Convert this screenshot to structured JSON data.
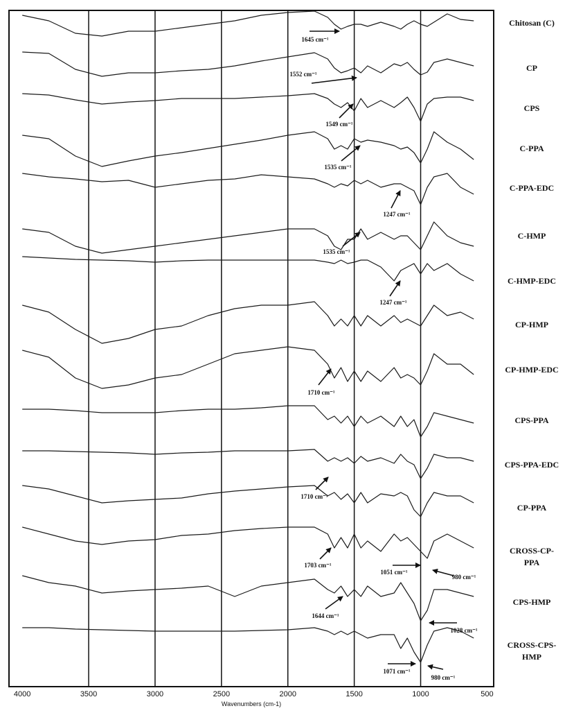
{
  "chart_data": {
    "type": "line",
    "x_label": "Wavenumbers (cm-1)",
    "x": [
      4000,
      3800,
      3600,
      3400,
      3200,
      3000,
      2800,
      2600,
      2400,
      2200,
      2000,
      1800,
      1700,
      1650,
      1600,
      1550,
      1500,
      1450,
      1400,
      1300,
      1200,
      1150,
      1100,
      1050,
      1000,
      950,
      900,
      800,
      700,
      600
    ],
    "xlim": [
      4100,
      450
    ],
    "xticks": [
      4000,
      3500,
      3000,
      2500,
      2000,
      1500,
      1000,
      500
    ],
    "ylim": [
      10,
      985
    ],
    "grid": true,
    "color": "#1a1a1a",
    "series": [
      {
        "name": "Chitosan (C)",
        "values": [
          978,
          970,
          952,
          948,
          955,
          955,
          960,
          965,
          970,
          978,
          982,
          984,
          975,
          965,
          958,
          962,
          965,
          965,
          962,
          968,
          962,
          958,
          965,
          970,
          965,
          962,
          968,
          980,
          972,
          970
        ]
      },
      {
        "name": "CP",
        "values": [
          925,
          923,
          900,
          890,
          895,
          895,
          898,
          900,
          905,
          912,
          918,
          924,
          915,
          902,
          895,
          898,
          902,
          895,
          905,
          895,
          908,
          905,
          910,
          900,
          892,
          896,
          910,
          915,
          910,
          905
        ]
      },
      {
        "name": "CPS",
        "values": [
          865,
          863,
          856,
          850,
          853,
          855,
          858,
          858,
          858,
          860,
          862,
          865,
          858,
          850,
          845,
          852,
          840,
          858,
          845,
          855,
          845,
          852,
          860,
          845,
          825,
          850,
          858,
          860,
          860,
          855
        ]
      },
      {
        "name": "C-PPA",
        "values": [
          805,
          800,
          775,
          760,
          768,
          775,
          780,
          786,
          792,
          798,
          805,
          810,
          800,
          785,
          790,
          785,
          800,
          795,
          798,
          795,
          790,
          785,
          788,
          780,
          765,
          785,
          810,
          795,
          785,
          770
        ]
      },
      {
        "name": "C-PPA-EDC",
        "values": [
          750,
          745,
          742,
          738,
          740,
          730,
          735,
          740,
          742,
          748,
          745,
          742,
          735,
          730,
          735,
          732,
          740,
          735,
          740,
          730,
          735,
          735,
          730,
          725,
          705,
          730,
          745,
          750,
          730,
          720
        ]
      },
      {
        "name": "C-HMP",
        "values": [
          670,
          665,
          645,
          635,
          640,
          645,
          650,
          655,
          660,
          665,
          670,
          670,
          660,
          645,
          640,
          655,
          655,
          670,
          655,
          665,
          655,
          660,
          660,
          650,
          640,
          660,
          680,
          660,
          650,
          645
        ]
      },
      {
        "name": "C-HMP-EDC",
        "values": [
          630,
          628,
          626,
          625,
          624,
          622,
          624,
          625,
          625,
          625,
          625,
          625,
          622,
          620,
          625,
          620,
          622,
          625,
          625,
          615,
          595,
          610,
          615,
          620,
          605,
          620,
          610,
          620,
          605,
          595
        ]
      },
      {
        "name": "CP-HMP",
        "values": [
          560,
          550,
          525,
          505,
          512,
          525,
          530,
          545,
          555,
          560,
          560,
          565,
          545,
          530,
          540,
          530,
          545,
          530,
          545,
          530,
          545,
          535,
          540,
          535,
          530,
          545,
          560,
          545,
          550,
          540
        ]
      },
      {
        "name": "CP-HMP-EDC",
        "values": [
          495,
          485,
          455,
          440,
          445,
          455,
          460,
          475,
          490,
          495,
          500,
          495,
          475,
          455,
          470,
          450,
          465,
          450,
          465,
          450,
          470,
          455,
          460,
          455,
          445,
          465,
          490,
          475,
          475,
          460
        ]
      },
      {
        "name": "CPS-PPA",
        "values": [
          410,
          410,
          408,
          405,
          405,
          405,
          408,
          410,
          410,
          412,
          415,
          415,
          395,
          400,
          390,
          400,
          385,
          400,
          390,
          400,
          385,
          400,
          385,
          395,
          370,
          385,
          405,
          400,
          395,
          390
        ]
      },
      {
        "name": "CPS-PPA-EDC",
        "values": [
          350,
          350,
          349,
          348,
          347,
          345,
          347,
          348,
          350,
          350,
          350,
          352,
          335,
          340,
          335,
          340,
          332,
          342,
          335,
          340,
          332,
          345,
          335,
          330,
          310,
          325,
          345,
          340,
          340,
          335
        ]
      },
      {
        "name": "CP-PPA",
        "values": [
          300,
          295,
          285,
          275,
          278,
          280,
          282,
          288,
          292,
          295,
          298,
          300,
          285,
          290,
          280,
          288,
          275,
          290,
          275,
          288,
          285,
          290,
          285,
          265,
          255,
          275,
          290,
          285,
          285,
          275
        ]
      },
      {
        "name": "CROSS-CP-PPA",
        "values": [
          240,
          230,
          220,
          215,
          220,
          222,
          228,
          230,
          235,
          238,
          240,
          240,
          230,
          210,
          225,
          210,
          230,
          210,
          220,
          205,
          230,
          220,
          225,
          215,
          205,
          195,
          220,
          230,
          220,
          210
        ]
      },
      {
        "name": "CPS-HMP",
        "values": [
          170,
          160,
          155,
          145,
          148,
          150,
          152,
          155,
          140,
          155,
          160,
          165,
          150,
          145,
          155,
          140,
          150,
          140,
          155,
          140,
          145,
          160,
          145,
          130,
          105,
          120,
          150,
          150,
          145,
          140
        ]
      },
      {
        "name": "CROSS-CPS-HMP",
        "values": [
          95,
          95,
          93,
          92,
          91,
          90,
          90,
          90,
          90,
          91,
          92,
          95,
          90,
          85,
          90,
          85,
          90,
          85,
          80,
          85,
          85,
          65,
          80,
          60,
          45,
          70,
          90,
          95,
          90,
          80
        ]
      }
    ],
    "annotations": [
      "1645 cm⁻¹",
      "1552 cm⁻¹",
      "1549 cm⁻¹",
      "1535 cm⁻¹",
      "1247 cm⁻¹",
      "1535 cm⁻¹",
      "1247 cm⁻¹",
      "1710 cm⁻¹",
      "1710 cm⁻¹",
      "1703 cm⁻¹",
      "1051 cm⁻¹",
      "980 cm⁻¹",
      "1644 cm⁻¹",
      "1028 cm⁻¹",
      "1071 cm⁻¹",
      "980 cm⁻¹"
    ]
  }
}
